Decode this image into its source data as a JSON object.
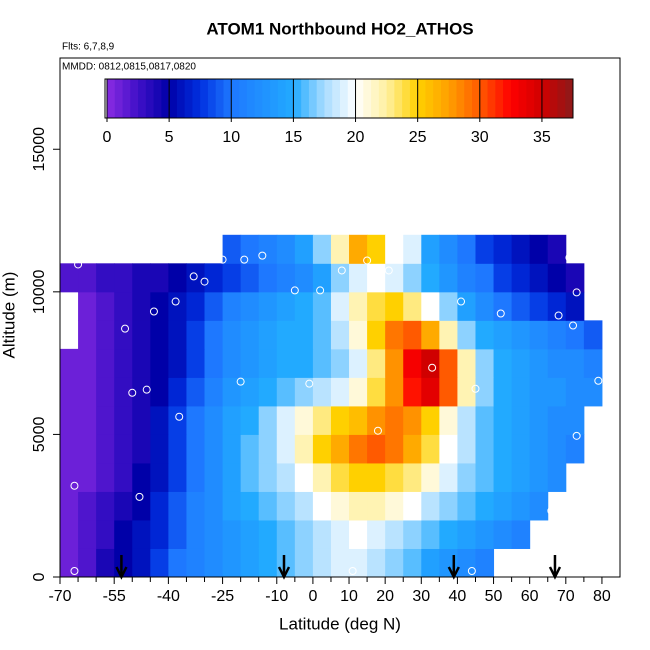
{
  "chart_data": {
    "type": "heatmap",
    "title": "ATOM1 Northbound HO2_ATHOS",
    "flights": "Flts: 6,7,8,9",
    "dates": "MMDD: 0812,0815,0817,0820",
    "xlabel": "Latitude (deg N)",
    "ylabel": "Altitude (m)",
    "xlim": [
      -70,
      85
    ],
    "ylim": [
      0,
      18200
    ],
    "xticks": [
      -70,
      -55,
      -40,
      -25,
      -10,
      0,
      10,
      20,
      30,
      40,
      50,
      60,
      70,
      80
    ],
    "xminorticks": [
      -65,
      -60,
      -50,
      -45,
      -35,
      -30,
      -20,
      -15,
      -5,
      5,
      15,
      25,
      35,
      45,
      55,
      65,
      75
    ],
    "yticks": [
      0,
      5000,
      10000,
      15000
    ],
    "xbins": [
      -70,
      -65,
      -60,
      -55,
      -50,
      -45,
      -40,
      -35,
      -30,
      -25,
      -20,
      -15,
      -10,
      -5,
      0,
      5,
      10,
      15,
      20,
      25,
      30,
      35,
      40,
      45,
      50,
      55,
      60,
      65,
      70,
      75,
      80
    ],
    "ybins": [
      0,
      1000,
      2000,
      3000,
      4000,
      5000,
      6000,
      7000,
      8000,
      9000,
      10000,
      11000,
      12000
    ],
    "z": [
      [
        1,
        2,
        4,
        5,
        6,
        8,
        10,
        11,
        12,
        13,
        14,
        15,
        16,
        17,
        18,
        19,
        19,
        18,
        17,
        16,
        14,
        13,
        12,
        11,
        null,
        null,
        null,
        null,
        null,
        null
      ],
      [
        1,
        2,
        3,
        5,
        6,
        7,
        9,
        11,
        12,
        13,
        14,
        15,
        16,
        17,
        18,
        19,
        20,
        19,
        18,
        17,
        16,
        15,
        14,
        13,
        12,
        11,
        null,
        null,
        null,
        null
      ],
      [
        1,
        2,
        3,
        4,
        5,
        7,
        9,
        11,
        12,
        14,
        15,
        16,
        17,
        18,
        20,
        21,
        22,
        22,
        21,
        20,
        18,
        17,
        16,
        15,
        14,
        13,
        12,
        null,
        null,
        null
      ],
      [
        1,
        1,
        2,
        3,
        5,
        6,
        8,
        10,
        12,
        14,
        16,
        17,
        18,
        20,
        22,
        24,
        25,
        25,
        24,
        23,
        21,
        19,
        17,
        16,
        15,
        14,
        13,
        12,
        null,
        null
      ],
      [
        1,
        1,
        2,
        3,
        4,
        6,
        8,
        10,
        12,
        14,
        16,
        17,
        19,
        22,
        25,
        27,
        29,
        30,
        29,
        27,
        24,
        20,
        18,
        16,
        15,
        14,
        13,
        12,
        11,
        null
      ],
      [
        1,
        1,
        2,
        3,
        4,
        6,
        8,
        10,
        12,
        14,
        15,
        17,
        19,
        21,
        23,
        25,
        26,
        28,
        29,
        28,
        25,
        21,
        18,
        16,
        15,
        14,
        13,
        12,
        12,
        null
      ],
      [
        1,
        1,
        2,
        3,
        4,
        5,
        7,
        9,
        11,
        13,
        14,
        15,
        16,
        17,
        18,
        19,
        21,
        24,
        28,
        32,
        34,
        30,
        22,
        17,
        15,
        14,
        13,
        13,
        12,
        12
      ],
      [
        1,
        1,
        2,
        3,
        4,
        5,
        6,
        8,
        10,
        12,
        13,
        14,
        15,
        15,
        16,
        17,
        19,
        23,
        28,
        33,
        35,
        30,
        22,
        17,
        15,
        14,
        13,
        12,
        12,
        11
      ],
      [
        null,
        1,
        2,
        3,
        4,
        5,
        6,
        8,
        10,
        12,
        13,
        14,
        15,
        15,
        16,
        18,
        21,
        25,
        29,
        30,
        27,
        22,
        17,
        15,
        14,
        13,
        12,
        11,
        10,
        9
      ],
      [
        null,
        1,
        2,
        3,
        4,
        5,
        6,
        7,
        9,
        11,
        12,
        13,
        14,
        15,
        16,
        19,
        22,
        24,
        25,
        23,
        20,
        17,
        14,
        12,
        10,
        9,
        8,
        7,
        6,
        null
      ],
      [
        2,
        2,
        3,
        3,
        4,
        4,
        5,
        6,
        7,
        8,
        9,
        10,
        11,
        12,
        14,
        17,
        19,
        20,
        19,
        17,
        15,
        13,
        11,
        10,
        8,
        7,
        6,
        5,
        4,
        null
      ],
      [
        null,
        null,
        null,
        null,
        null,
        null,
        null,
        null,
        null,
        9,
        10,
        11,
        12,
        14,
        17,
        22,
        27,
        25,
        20,
        19,
        14,
        12,
        10,
        8,
        7,
        6,
        5,
        4,
        null,
        null
      ]
    ],
    "colorscale": [
      [
        0,
        "#8a2be2"
      ],
      [
        2.5,
        "#4010c8"
      ],
      [
        5,
        "#0000a8"
      ],
      [
        7.5,
        "#0030e0"
      ],
      [
        10,
        "#1e78ff"
      ],
      [
        15,
        "#22aaff"
      ],
      [
        17.5,
        "#a8dcff"
      ],
      [
        20,
        "#ffffff"
      ],
      [
        22.5,
        "#fff0a0"
      ],
      [
        25,
        "#ffd000"
      ],
      [
        27.5,
        "#ffa000"
      ],
      [
        30,
        "#ff5a00"
      ],
      [
        32.5,
        "#ff0000"
      ],
      [
        35,
        "#d00000"
      ],
      [
        37.5,
        "#8b1a1a"
      ]
    ],
    "colorbar_lim": [
      0,
      37.5
    ],
    "colorbar_ticks": [
      0,
      5,
      10,
      15,
      20,
      25,
      30,
      35
    ],
    "points": {
      "x": [
        -66,
        -66,
        -48,
        -50,
        -46,
        -37,
        -52,
        -44,
        -38,
        -33,
        -30,
        -65,
        -25,
        -19,
        -14,
        -5,
        2,
        8,
        15,
        21,
        -20,
        -1,
        18,
        33,
        41,
        45,
        52,
        68,
        72,
        71,
        73,
        79,
        73,
        66,
        44,
        11
      ],
      "y": [
        210,
        3200,
        2810,
        6460,
        6570,
        5620,
        8710,
        9310,
        9660,
        10540,
        10360,
        10960,
        11130,
        11130,
        11270,
        10050,
        10050,
        10750,
        11100,
        10750,
        6850,
        6780,
        5130,
        7340,
        9660,
        6600,
        9240,
        9170,
        8820,
        11200,
        9980,
        6880,
        4950,
        2320,
        210,
        210
      ]
    },
    "arrows_x": [
      -53,
      -8,
      39,
      67
    ]
  }
}
